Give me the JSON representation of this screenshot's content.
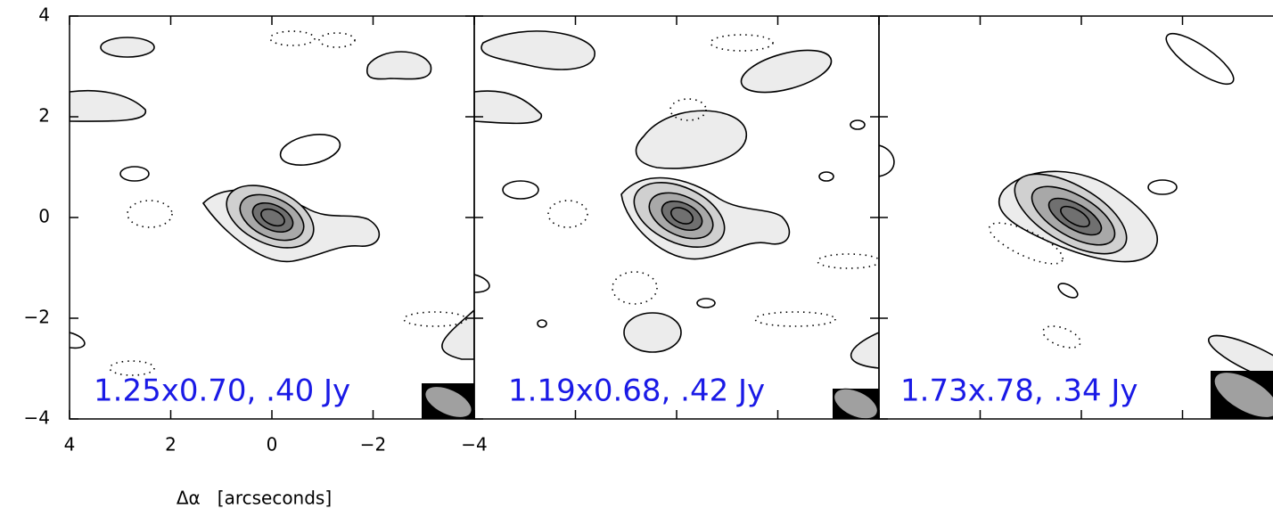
{
  "chart_data": [
    {
      "type": "contour",
      "label": "1.25x0.70, .40 Jy",
      "xlabel": "Δα   [arcseconds]",
      "xlim": [
        4,
        -4
      ],
      "ylim": [
        -4,
        4
      ],
      "xticks": [
        4,
        2,
        0,
        {
          "value": -2,
          "label": "−2"
        },
        {
          "value": -4,
          "label": "−4"
        }
      ],
      "yticks": [
        {
          "value": -4,
          "label": "−4"
        },
        {
          "value": -2,
          "label": "−2"
        },
        0,
        2,
        4
      ]
    },
    {
      "type": "contour",
      "label": "1.19x0.68, .42 Jy",
      "xlim": [
        4,
        -4
      ],
      "ylim": [
        -4,
        4
      ]
    },
    {
      "type": "contour",
      "label": "1.73x.78, .34 Jy",
      "xlim": [
        4,
        -4
      ],
      "ylim": [
        -4,
        4
      ]
    }
  ]
}
